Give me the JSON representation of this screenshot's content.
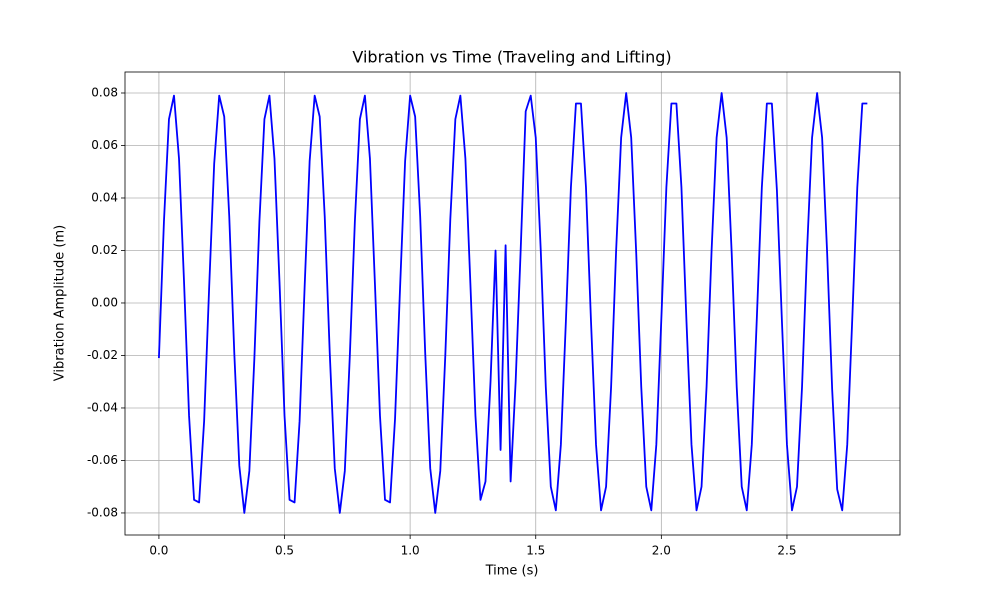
{
  "chart_data": {
    "type": "line",
    "title": "Vibration vs Time (Traveling and Lifting)",
    "xlabel": "Time (s)",
    "ylabel": "Vibration Amplitude (m)",
    "color": "#0000ff",
    "grid": true,
    "xlim": [
      -0.135,
      2.95
    ],
    "ylim": [
      -0.0884,
      0.088
    ],
    "xticks": [
      {
        "value": 0,
        "label": "0.0"
      },
      0.5,
      {
        "value": 1,
        "label": "1.0"
      },
      1.5,
      {
        "value": 2,
        "label": "2.0"
      },
      2.5
    ],
    "yticks": [
      -0.08,
      -0.06,
      -0.04,
      -0.02,
      {
        "value": 0,
        "label": "0.00"
      },
      0.02,
      0.04,
      0.06,
      0.08
    ],
    "x": [
      0,
      0.02,
      0.04,
      0.06,
      0.08,
      0.1,
      0.12,
      0.14,
      0.16,
      0.18,
      0.2,
      0.22,
      0.24,
      0.26,
      0.28,
      0.3,
      0.32,
      0.34,
      0.36,
      0.38,
      0.4,
      0.42,
      0.44,
      0.46,
      0.48,
      0.5,
      0.52,
      0.54,
      0.56,
      0.58,
      0.6,
      0.62,
      0.64,
      0.66,
      0.68,
      0.7,
      0.72,
      0.74,
      0.76,
      0.78,
      0.8,
      0.82,
      0.84,
      0.86,
      0.88,
      0.9,
      0.92,
      0.94,
      0.96,
      0.98,
      1.0,
      1.02,
      1.04,
      1.06,
      1.08,
      1.1,
      1.12,
      1.14,
      1.16,
      1.18,
      1.2,
      1.22,
      1.24,
      1.26,
      1.28,
      1.3,
      1.32,
      1.34,
      1.36,
      1.38,
      1.4,
      1.42,
      1.44,
      1.46,
      1.48,
      1.5,
      1.52,
      1.54,
      1.56,
      1.58,
      1.6,
      1.62,
      1.64,
      1.66,
      1.68,
      1.7,
      1.72,
      1.74,
      1.76,
      1.78,
      1.8,
      1.82,
      1.84,
      1.86,
      1.88,
      1.9,
      1.92,
      1.94,
      1.96,
      1.98,
      2.0,
      2.02,
      2.04,
      2.06,
      2.08,
      2.1,
      2.12,
      2.14,
      2.16,
      2.18,
      2.2,
      2.22,
      2.24,
      2.26,
      2.28,
      2.3,
      2.32,
      2.34,
      2.36,
      2.38,
      2.4,
      2.42,
      2.44,
      2.46,
      2.48,
      2.5,
      2.52,
      2.54,
      2.56,
      2.58,
      2.6,
      2.62,
      2.64,
      2.66,
      2.68,
      2.7,
      2.72,
      2.74,
      2.76,
      2.78,
      2.8,
      2.82
    ],
    "values": [
      -0.021,
      0.031,
      0.07,
      0.079,
      0.055,
      0.008,
      -0.043,
      -0.075,
      -0.076,
      -0.045,
      0.006,
      0.053,
      0.079,
      0.071,
      0.033,
      -0.019,
      -0.062,
      -0.08,
      -0.064,
      -0.021,
      0.031,
      0.07,
      0.079,
      0.055,
      0.008,
      -0.043,
      -0.075,
      -0.076,
      -0.045,
      0.006,
      0.054,
      0.079,
      0.071,
      0.033,
      -0.019,
      -0.063,
      -0.08,
      -0.064,
      -0.02,
      0.031,
      0.07,
      0.079,
      0.055,
      0.007,
      -0.043,
      -0.075,
      -0.076,
      -0.044,
      0.006,
      0.054,
      0.079,
      0.071,
      0.033,
      -0.019,
      -0.063,
      -0.08,
      -0.064,
      -0.02,
      0.032,
      0.07,
      0.079,
      0.055,
      0.007,
      -0.043,
      -0.075,
      -0.068,
      -0.03,
      0.02,
      -0.056,
      0.022,
      -0.068,
      -0.03,
      0.02,
      0.073,
      0.079,
      0.063,
      0.02,
      -0.032,
      -0.07,
      -0.079,
      -0.054,
      -0.007,
      0.044,
      0.076,
      0.076,
      0.044,
      -0.007,
      -0.054,
      -0.079,
      -0.07,
      -0.032,
      0.02,
      0.063,
      0.08,
      0.063,
      0.019,
      -0.032,
      -0.07,
      -0.079,
      -0.054,
      -0.006,
      0.044,
      0.076,
      0.076,
      0.044,
      -0.007,
      -0.054,
      -0.079,
      -0.07,
      -0.032,
      0.02,
      0.063,
      0.08,
      0.063,
      0.019,
      -0.032,
      -0.07,
      -0.079,
      -0.054,
      -0.006,
      0.044,
      0.076,
      0.076,
      0.043,
      -0.007,
      -0.054,
      -0.079,
      -0.07,
      -0.032,
      0.02,
      0.063,
      0.08,
      0.063,
      0.019,
      -0.033,
      -0.071,
      -0.079,
      -0.054,
      -0.006,
      0.044,
      0.076,
      0.076
    ]
  }
}
